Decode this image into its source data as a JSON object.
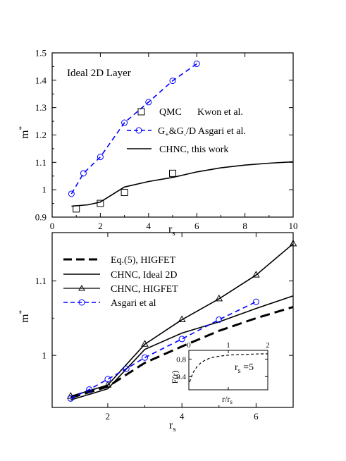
{
  "chart_data": [
    {
      "type": "line",
      "annotation": "Ideal 2D Layer",
      "xlabel_main": "r",
      "xlabel_sub": "s",
      "ylabel_main": "m",
      "ylabel_sup": "*",
      "xlim": [
        0,
        10
      ],
      "ylim": [
        0.9,
        1.5
      ],
      "xticks": [
        0,
        2,
        4,
        6,
        8,
        10
      ],
      "xtick_labels": [
        "0",
        "2",
        "4",
        "6",
        "8",
        "10"
      ],
      "yticks": [
        0.9,
        1.0,
        1.1,
        1.2,
        1.3,
        1.4,
        1.5
      ],
      "ytick_labels": [
        "0.9",
        "1",
        "1.1",
        "1.2",
        "1.3",
        "1.4",
        "1.5"
      ],
      "legend_position": "middle-right",
      "series": [
        {
          "legend_main": "QMC",
          "legend_extra": "Kwon et al.",
          "style": "markers",
          "marker": "square",
          "color": "#000000",
          "x": [
            1,
            2,
            3,
            5
          ],
          "y": [
            0.93,
            0.95,
            0.99,
            1.06
          ]
        },
        {
          "legend_segments": [
            {
              "text": "G",
              "kind": "normal"
            },
            {
              "text": "+",
              "kind": "sub"
            },
            {
              "text": "&G",
              "kind": "normal"
            },
            {
              "text": "-",
              "kind": "sub"
            },
            {
              "text": "/D  Asgari et al.",
              "kind": "normal"
            }
          ],
          "style": "dashed",
          "marker": "circle",
          "color": "#0000ff",
          "x": [
            0.8,
            1.3,
            2.0,
            3.0,
            4.0,
            5.0,
            6.0
          ],
          "y": [
            0.985,
            1.06,
            1.12,
            1.245,
            1.32,
            1.398,
            1.46
          ]
        },
        {
          "legend_main": "CHNC, this work",
          "style": "solid",
          "marker": "none",
          "color": "#000000",
          "x": [
            0.8,
            1.5,
            2.0,
            3.0,
            4.0,
            5.0,
            6.0,
            7.0,
            8.0,
            9.0,
            10.0
          ],
          "y": [
            0.94,
            0.945,
            0.955,
            1.01,
            1.03,
            1.045,
            1.065,
            1.08,
            1.09,
            1.097,
            1.102
          ]
        }
      ]
    },
    {
      "type": "line",
      "xlabel_main": "r",
      "xlabel_sub": "s",
      "ylabel_main": "m",
      "ylabel_sup": "*",
      "xlim": [
        0.5,
        7
      ],
      "ylim": [
        0.93,
        1.165
      ],
      "xticks": [
        2,
        4,
        6
      ],
      "xtick_labels": [
        "2",
        "4",
        "6"
      ],
      "yticks": [
        1.0,
        1.1
      ],
      "ytick_labels": [
        "1",
        "1.1"
      ],
      "legend_position": "top-left",
      "series": [
        {
          "legend_main": "Eq.(5),  HIGFET",
          "style": "long-dashed",
          "marker": "none",
          "color": "#000000",
          "x": [
            1.0,
            2.0,
            3.0,
            4.0,
            5.0,
            6.0,
            7.0
          ],
          "y": [
            0.943,
            0.958,
            0.99,
            1.012,
            1.033,
            1.05,
            1.065
          ]
        },
        {
          "legend_main": "CHNC, Ideal 2D",
          "style": "solid",
          "marker": "none",
          "color": "#000000",
          "x": [
            1.0,
            2.0,
            3.0,
            4.0,
            5.0,
            6.0,
            7.0
          ],
          "y": [
            0.94,
            0.955,
            1.008,
            1.03,
            1.045,
            1.063,
            1.08
          ]
        },
        {
          "legend_main": "CHNC, HIGFET",
          "style": "solid",
          "marker": "triangle",
          "color": "#000000",
          "x": [
            1.0,
            2.0,
            3.0,
            4.0,
            5.0,
            6.0,
            7.0
          ],
          "y": [
            0.945,
            0.96,
            1.015,
            1.048,
            1.076,
            1.108,
            1.15
          ]
        },
        {
          "legend_main": "Asgari et al",
          "style": "dashed",
          "marker": "circle",
          "color": "#0000ff",
          "x": [
            1.0,
            1.5,
            2.0,
            2.5,
            3.0,
            4.0,
            5.0,
            6.0
          ],
          "y": [
            0.942,
            0.954,
            0.968,
            0.982,
            0.997,
            1.022,
            1.048,
            1.072
          ]
        }
      ]
    },
    {
      "type": "line",
      "xlabel_main": "r/r",
      "xlabel_sub": "s",
      "ylabel": "F(r)",
      "annotation_main": "r",
      "annotation_sub": "s",
      "annotation_rest": " =5",
      "xlim": [
        0,
        2
      ],
      "ylim": [
        0.1,
        1.0
      ],
      "xticks": [
        0,
        1,
        2
      ],
      "xtick_labels": [
        "0",
        "1",
        "2"
      ],
      "yticks": [
        0.4,
        0.8
      ],
      "ytick_labels": [
        "0.4",
        "0.8"
      ],
      "series": [
        {
          "style": "dashed",
          "marker": "none",
          "color": "#000000",
          "x": [
            0.02,
            0.1,
            0.2,
            0.3,
            0.4,
            0.5,
            0.6,
            0.8,
            1.0,
            1.2,
            1.5,
            1.8,
            2.0
          ],
          "y": [
            0.28,
            0.48,
            0.62,
            0.71,
            0.77,
            0.81,
            0.84,
            0.87,
            0.89,
            0.9,
            0.91,
            0.92,
            0.92
          ]
        }
      ]
    }
  ]
}
